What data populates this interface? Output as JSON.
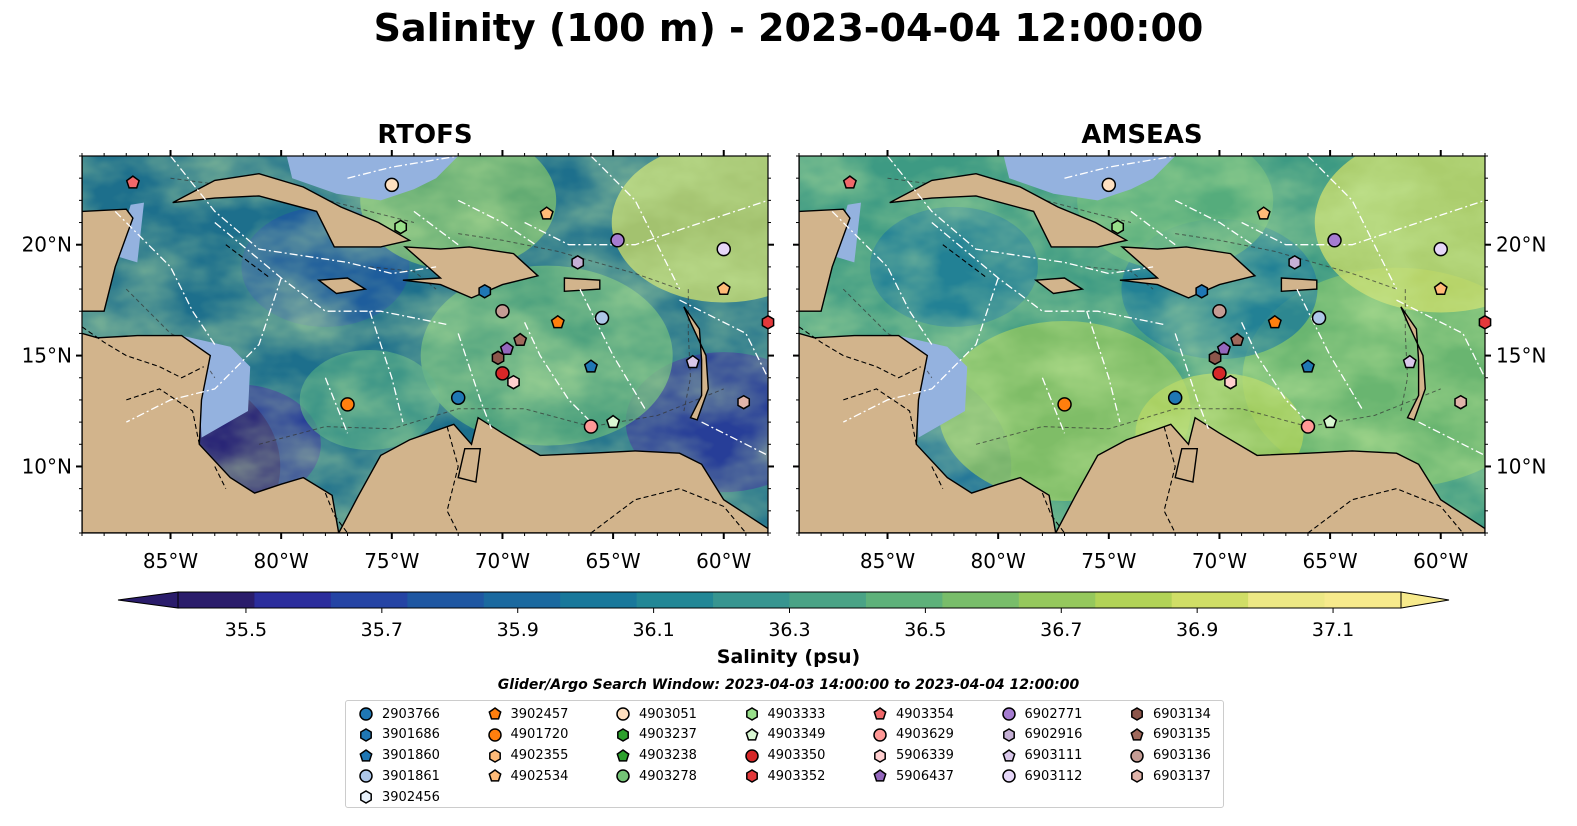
{
  "title": "Salinity (100 m) - 2023-04-04 12:00:00",
  "panels": [
    {
      "title": "RTOFS",
      "colors": {
        "ocean_base": "#1d6f8c"
      }
    },
    {
      "title": "AMSEAS",
      "colors": {
        "ocean_base": "#3d9a83"
      }
    }
  ],
  "axes": {
    "lon_labels": [
      "85°W",
      "80°W",
      "75°W",
      "70°W",
      "65°W",
      "60°W"
    ],
    "lat_labels": [
      "20°N",
      "15°N",
      "10°N"
    ],
    "lon_range": [
      -89,
      -58
    ],
    "lat_range": [
      7,
      24
    ]
  },
  "colorbar": {
    "label": "Salinity (psu)",
    "tick_labels": [
      "35.5",
      "35.7",
      "35.9",
      "36.1",
      "36.3",
      "36.5",
      "36.7",
      "36.9",
      "37.1"
    ],
    "range": [
      35.4,
      37.2
    ],
    "extend": "both",
    "colors": [
      "#2a1c6b",
      "#2b2d9c",
      "#2544a4",
      "#1f57a2",
      "#1b699f",
      "#19789b",
      "#228796",
      "#379590",
      "#4aa386",
      "#5eb17a",
      "#78bd6a",
      "#95c85d",
      "#b2d357",
      "#d0de66",
      "#ede885",
      "#f7ea8c"
    ]
  },
  "map_colors": {
    "land": "#d2b48c",
    "shelf": "#94b2df",
    "eez_line": "#ffffff",
    "border_line": "#000000"
  },
  "search_window": "Glider/Argo Search Window: 2023-04-03 14:00:00 to 2023-04-04 12:00:00",
  "legend": [
    {
      "id": "2903766",
      "marker": "circle",
      "color": "#1f77b4"
    },
    {
      "id": "3901686",
      "marker": "hexagon",
      "color": "#1f77b4"
    },
    {
      "id": "3901860",
      "marker": "pentagon",
      "color": "#1f77b4"
    },
    {
      "id": "3901861",
      "marker": "circle",
      "color": "#aec7e8"
    },
    {
      "id": "3902456",
      "marker": "hexagon",
      "color": "#e8f1fb"
    },
    {
      "id": "3902457",
      "marker": "pentagon",
      "color": "#ff7f0e"
    },
    {
      "id": "4901720",
      "marker": "circle",
      "color": "#ff7f0e"
    },
    {
      "id": "4902355",
      "marker": "hexagon",
      "color": "#ffbb78"
    },
    {
      "id": "4902534",
      "marker": "pentagon",
      "color": "#ffbb78"
    },
    {
      "id": "4903051",
      "marker": "circle",
      "color": "#ffe0c0"
    },
    {
      "id": "4903237",
      "marker": "hexagon",
      "color": "#2ca02c"
    },
    {
      "id": "4903238",
      "marker": "pentagon",
      "color": "#2ca02c"
    },
    {
      "id": "4903278",
      "marker": "circle",
      "color": "#74c476"
    },
    {
      "id": "4903333",
      "marker": "hexagon",
      "color": "#98df8a"
    },
    {
      "id": "4903349",
      "marker": "pentagon",
      "color": "#d9f7d2"
    },
    {
      "id": "4903350",
      "marker": "circle",
      "color": "#d62728"
    },
    {
      "id": "4903352",
      "marker": "hexagon",
      "color": "#e3393b"
    },
    {
      "id": "4903354",
      "marker": "pentagon",
      "color": "#f0686a"
    },
    {
      "id": "4903629",
      "marker": "circle",
      "color": "#ff9896"
    },
    {
      "id": "5906339",
      "marker": "hexagon",
      "color": "#ffcfcf"
    },
    {
      "id": "5906437",
      "marker": "pentagon",
      "color": "#9467bd"
    },
    {
      "id": "6902771",
      "marker": "circle",
      "color": "#a57cd0"
    },
    {
      "id": "6902916",
      "marker": "hexagon",
      "color": "#c5b0d5"
    },
    {
      "id": "6903111",
      "marker": "pentagon",
      "color": "#d9c8ea"
    },
    {
      "id": "6903112",
      "marker": "circle",
      "color": "#e6d7f8"
    },
    {
      "id": "6903134",
      "marker": "hexagon",
      "color": "#8c564b"
    },
    {
      "id": "6903135",
      "marker": "pentagon",
      "color": "#a0695c"
    },
    {
      "id": "6903136",
      "marker": "circle",
      "color": "#c49c94"
    },
    {
      "id": "6903137",
      "marker": "hexagon",
      "color": "#e0b4aa"
    }
  ],
  "floats": [
    {
      "id": "2903766",
      "lon": -72.0,
      "lat": 13.1
    },
    {
      "id": "3901861",
      "lon": -65.5,
      "lat": 16.7
    },
    {
      "id": "3901686",
      "lon": -70.8,
      "lat": 17.9
    },
    {
      "id": "3901860",
      "lon": -66.0,
      "lat": 14.5
    },
    {
      "id": "4901720",
      "lon": -77.0,
      "lat": 12.8
    },
    {
      "id": "3902457",
      "lon": -67.5,
      "lat": 16.5
    },
    {
      "id": "4902534",
      "lon": -60.0,
      "lat": 18.0
    },
    {
      "id": "4903051",
      "lon": -75.0,
      "lat": 22.7
    },
    {
      "id": "4903333",
      "lon": -74.6,
      "lat": 20.8
    },
    {
      "id": "4903349",
      "lon": -65.0,
      "lat": 12.0
    },
    {
      "id": "4903350",
      "lon": -70.0,
      "lat": 14.2
    },
    {
      "id": "4903354",
      "lon": -86.7,
      "lat": 22.8
    },
    {
      "id": "4903352",
      "lon": -58.0,
      "lat": 16.5
    },
    {
      "id": "4903629",
      "lon": -66.0,
      "lat": 11.8
    },
    {
      "id": "5906339",
      "lon": -69.5,
      "lat": 13.8
    },
    {
      "id": "5906437",
      "lon": -69.8,
      "lat": 15.3
    },
    {
      "id": "6902771",
      "lon": -64.8,
      "lat": 20.2
    },
    {
      "id": "6902916",
      "lon": -66.6,
      "lat": 19.2
    },
    {
      "id": "6903111",
      "lon": -61.4,
      "lat": 14.7
    },
    {
      "id": "6903112",
      "lon": -60.0,
      "lat": 19.8
    },
    {
      "id": "6903134",
      "lon": -70.2,
      "lat": 14.9
    },
    {
      "id": "6903135",
      "lon": -69.2,
      "lat": 15.7
    },
    {
      "id": "6903136",
      "lon": -70.0,
      "lat": 17.0
    },
    {
      "id": "6903137",
      "lon": -59.1,
      "lat": 12.9
    },
    {
      "id": "4902534",
      "lon": -68.0,
      "lat": 21.4
    }
  ]
}
